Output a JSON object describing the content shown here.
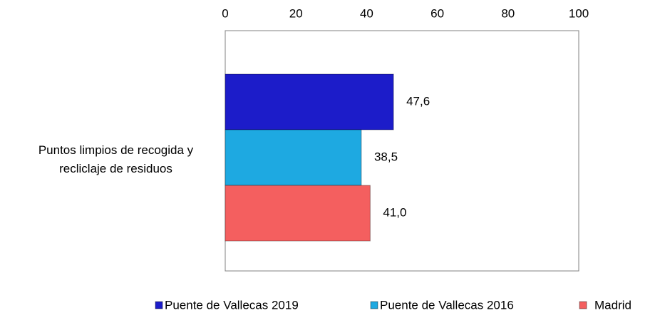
{
  "chart_data": {
    "type": "bar",
    "orientation": "horizontal",
    "categories": [
      "Puntos limpios de recogida y recliclaje de residuos"
    ],
    "series": [
      {
        "name": "Puente de Vallecas 2019",
        "color": "#1c1cc9",
        "values": [
          47.6
        ],
        "value_labels": [
          "47,6"
        ]
      },
      {
        "name": "Puente de Vallecas 2016",
        "color": "#1ea9e1",
        "values": [
          38.5
        ],
        "value_labels": [
          "38,5"
        ]
      },
      {
        "name": "Madrid",
        "color": "#f45f5f",
        "values": [
          41.0
        ],
        "value_labels": [
          "41,0"
        ]
      }
    ],
    "xlim": [
      0,
      100
    ],
    "xticks": [
      0,
      20,
      40,
      60,
      80,
      100
    ],
    "grid": false,
    "legend": "bottom"
  }
}
